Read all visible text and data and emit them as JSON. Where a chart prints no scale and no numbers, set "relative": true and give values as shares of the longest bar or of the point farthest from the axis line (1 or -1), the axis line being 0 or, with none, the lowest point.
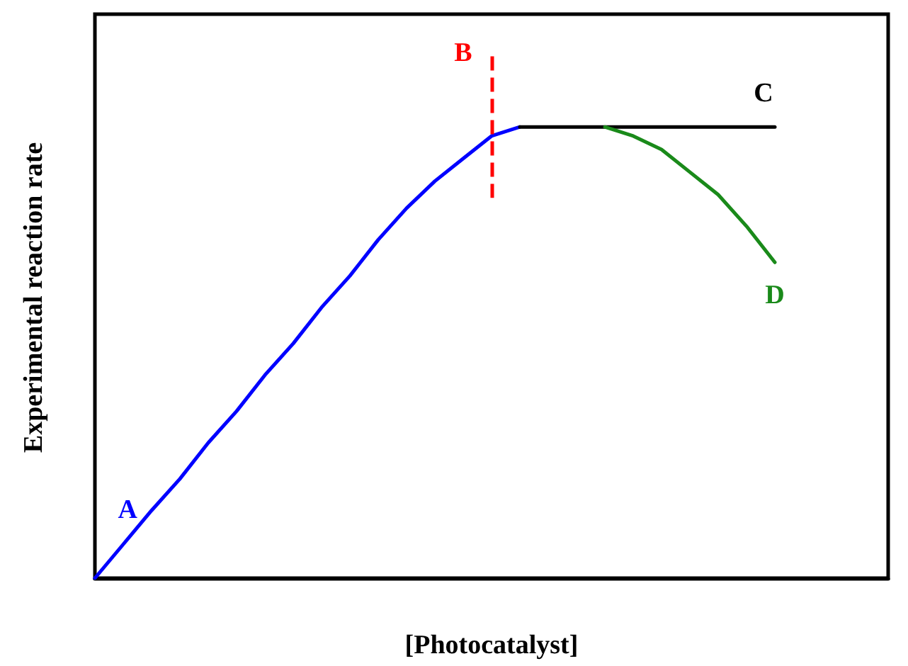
{
  "chart_data": {
    "type": "line",
    "relative": true,
    "xlabel": "[Photocatalyst]",
    "ylabel": "Experimental reaction rate",
    "marker": "none",
    "line_style": "solid",
    "categories": [
      null,
      null,
      null,
      null,
      null,
      null,
      null,
      null,
      null,
      null,
      null,
      null,
      null,
      null,
      null,
      null,
      null,
      null,
      null,
      null,
      null,
      null,
      null,
      null,
      null,
      null,
      null,
      null,
      null
    ],
    "series": [
      {
        "name": "A",
        "color": "#0000ff",
        "values": [
          0,
          0.075,
          0.15,
          0.22,
          0.3,
          0.37,
          0.45,
          0.52,
          0.6,
          0.67,
          0.75,
          0.82,
          0.88,
          0.93,
          0.98,
          1.0,
          null,
          null,
          null,
          null,
          null,
          null,
          null,
          null,
          null,
          null,
          null,
          null,
          null
        ]
      },
      {
        "name": "C",
        "color": "#000000",
        "values": [
          null,
          null,
          null,
          null,
          null,
          null,
          null,
          null,
          null,
          null,
          null,
          null,
          null,
          null,
          null,
          1.0,
          1.0,
          1.0,
          1.0,
          1.0,
          1.0,
          1.0,
          1.0,
          1.0,
          1.0,
          null,
          null,
          null,
          null
        ]
      },
      {
        "name": "D",
        "color": "#1a8a1a",
        "values": [
          null,
          null,
          null,
          null,
          null,
          null,
          null,
          null,
          null,
          null,
          null,
          null,
          null,
          null,
          null,
          null,
          null,
          null,
          1.0,
          0.98,
          0.95,
          0.9,
          0.85,
          0.78,
          0.7,
          null,
          null,
          null,
          null
        ]
      }
    ],
    "annotations": [
      "B"
    ]
  }
}
